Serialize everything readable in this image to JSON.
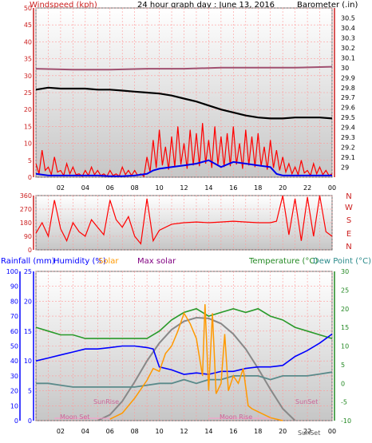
{
  "header": {
    "left_title": "Windspeed (kph)",
    "center_title": "24 hour graph day : June 13, 2016",
    "right_title": "Barometer (.in)"
  },
  "bottom_header": {
    "rainfall": "Rainfall (mm)",
    "humidity": "Humidity (%)",
    "solar": "Solar",
    "max_solar": "Max solar",
    "temperature": "Temperature (°C)",
    "dewpoint": "Dew Point (°C)"
  },
  "annotations": {
    "sunrise": "SunRise",
    "sunset": "SunSet",
    "moonset": "Moon Set",
    "moonrise": "Moon Rise"
  },
  "colors": {
    "wind": "#ff0000",
    "gust": "#0000ee",
    "barometer": "#000000",
    "barometer_ref": "#a05070",
    "direction": "#ff0000",
    "humidity": "#0000ff",
    "solar": "#ff9900",
    "max_solar": "#888888",
    "temperature": "#2a9a2a",
    "dewpoint": "#5a8a8a",
    "grid": "#ff9999",
    "left_axis_top": "#cc2020",
    "right_axis_bottom": "#228822",
    "rain_axis": "#0000ff",
    "humid_axis": "#0000ff"
  },
  "chart_data": [
    {
      "id": "wind",
      "type": "line",
      "title": "24 hour graph day : June 13, 2016",
      "xlabel": "",
      "ylabel": "Windspeed (kph)",
      "y2label": "Barometer (.in)",
      "x_ticks": [
        "02",
        "04",
        "06",
        "08",
        "10",
        "12",
        "14",
        "16",
        "18",
        "20",
        "22",
        "00"
      ],
      "y_ticks": [
        0,
        5,
        10,
        15,
        20,
        25,
        30,
        35,
        40,
        45,
        50
      ],
      "y2_ticks": [
        29,
        29.1,
        29.2,
        29.3,
        29.4,
        29.5,
        29.6,
        29.7,
        29.8,
        29.9,
        30,
        30.1,
        30.2,
        30.3,
        30.4,
        30.5
      ],
      "ylim": [
        0,
        50
      ],
      "y2lim": [
        28.9,
        30.6
      ],
      "grid": true,
      "series": [
        {
          "key": "barometer_ref",
          "axis": "right",
          "x": [
            0,
            3,
            6,
            9,
            12,
            15,
            18,
            21,
            24
          ],
          "values": [
            29.99,
            29.98,
            29.98,
            29.99,
            29.99,
            30.0,
            30.0,
            30.0,
            30.01
          ]
        },
        {
          "key": "barometer",
          "axis": "right",
          "x": [
            0,
            1,
            2,
            3,
            4,
            5,
            6,
            7,
            8,
            9,
            10,
            11,
            12,
            13,
            14,
            15,
            16,
            17,
            18,
            19,
            20,
            21,
            22,
            23,
            24
          ],
          "values": [
            29.78,
            29.8,
            29.79,
            29.79,
            29.79,
            29.78,
            29.78,
            29.77,
            29.76,
            29.75,
            29.74,
            29.72,
            29.69,
            29.66,
            29.62,
            29.58,
            29.55,
            29.52,
            29.5,
            29.49,
            29.49,
            29.5,
            29.5,
            29.5,
            29.49
          ]
        },
        {
          "key": "wind",
          "axis": "left",
          "x": [
            0,
            0.5,
            1,
            1.5,
            2,
            2.5,
            3,
            3.5,
            4,
            4.5,
            5,
            5.5,
            6,
            6.5,
            7,
            7.5,
            8,
            8.5,
            9,
            9.5,
            10,
            10.5,
            11,
            11.5,
            12,
            12.5,
            13,
            13.5,
            14,
            14.5,
            15,
            15.5,
            16,
            16.5,
            17,
            17.5,
            18,
            18.5,
            19,
            19.5,
            20,
            20.5,
            21,
            21.5,
            22,
            22.5,
            23,
            23.5,
            24
          ],
          "values": [
            4,
            8,
            3,
            6,
            2,
            4,
            3,
            1,
            2,
            3,
            2,
            1,
            2,
            1,
            3,
            2,
            2,
            1,
            6,
            11,
            14,
            9,
            12,
            15,
            10,
            14,
            13,
            16,
            11,
            15,
            12,
            13,
            15,
            10,
            14,
            12,
            13,
            9,
            11,
            8,
            6,
            4,
            3,
            5,
            2,
            4,
            3,
            2,
            1
          ]
        },
        {
          "key": "gust",
          "axis": "left",
          "x": [
            0,
            1,
            2,
            3,
            4,
            5,
            6,
            7,
            8,
            9,
            9.5,
            10,
            11,
            12,
            13,
            14,
            15,
            16,
            17,
            18,
            19,
            19.5,
            20,
            21,
            22,
            23,
            24
          ],
          "values": [
            1,
            0.5,
            0.5,
            0.5,
            0.5,
            0.5,
            0.3,
            0.3,
            0.5,
            1,
            2,
            2.5,
            3,
            3.5,
            4,
            5,
            3,
            4.5,
            4,
            3.5,
            3,
            1,
            0.5,
            0.5,
            0.5,
            0.5,
            0.5
          ]
        }
      ]
    },
    {
      "id": "direction",
      "type": "line",
      "xlabel": "",
      "ylabel": "",
      "y_ticks": [
        0,
        90,
        180,
        270,
        360
      ],
      "y_side_labels": [
        "N",
        "W",
        "S",
        "E",
        "N"
      ],
      "ylim": [
        0,
        360
      ],
      "series": [
        {
          "key": "direction",
          "x": [
            0,
            0.5,
            1,
            1.5,
            2,
            2.5,
            3,
            3.5,
            4,
            4.5,
            5,
            5.5,
            6,
            6.5,
            7,
            7.5,
            8,
            8.5,
            9,
            9.5,
            10,
            11,
            12,
            13,
            14,
            15,
            16,
            17,
            18,
            19,
            19.5,
            20,
            20.5,
            21,
            21.5,
            22,
            22.5,
            23,
            23.5,
            24
          ],
          "values": [
            110,
            180,
            90,
            330,
            140,
            60,
            180,
            120,
            90,
            200,
            150,
            100,
            330,
            200,
            150,
            220,
            90,
            40,
            340,
            60,
            130,
            170,
            180,
            185,
            180,
            185,
            190,
            185,
            180,
            180,
            190,
            360,
            100,
            340,
            60,
            350,
            90,
            360,
            120,
            90
          ]
        }
      ]
    },
    {
      "id": "bottom",
      "type": "line",
      "xlabel": "",
      "y_rain_ticks": [
        0,
        10,
        20,
        30,
        40,
        50,
        60,
        70,
        80,
        90,
        100
      ],
      "y_humid_ticks": [
        0,
        5,
        10,
        15,
        20,
        25
      ],
      "y_temp_ticks": [
        -10,
        -5,
        0,
        5,
        10,
        15,
        20,
        25,
        30
      ],
      "ylim_humidity": [
        0,
        100
      ],
      "ylim_temp": [
        -10,
        30
      ],
      "ylim_solar": [
        0,
        1000
      ],
      "grid": true,
      "series": [
        {
          "key": "temperature",
          "name": "Temperature (°C)",
          "x": [
            0,
            1,
            2,
            3,
            4,
            5,
            6,
            7,
            8,
            9,
            10,
            11,
            12,
            13,
            14,
            15,
            16,
            17,
            18,
            19,
            20,
            21,
            22,
            23,
            24
          ],
          "values": [
            15,
            14,
            13,
            13,
            12,
            12,
            12,
            12,
            12,
            12,
            14,
            17,
            19,
            20,
            18,
            19,
            20,
            19,
            20,
            18,
            17,
            15,
            14,
            13,
            12
          ]
        },
        {
          "key": "humidity",
          "name": "Humidity (%)",
          "x": [
            0,
            1,
            2,
            3,
            4,
            5,
            6,
            7,
            8,
            9,
            9.5,
            10,
            11,
            12,
            13,
            14,
            15,
            16,
            17,
            18,
            19,
            20,
            21,
            22,
            23,
            24
          ],
          "values": [
            40,
            42,
            44,
            46,
            48,
            48,
            49,
            50,
            50,
            49,
            48,
            36,
            34,
            31,
            32,
            31,
            33,
            33,
            35,
            36,
            36,
            37,
            43,
            47,
            52,
            58
          ]
        },
        {
          "key": "dewpoint",
          "name": "Dew Point (°C)",
          "x": [
            0,
            1,
            2,
            3,
            4,
            5,
            6,
            7,
            8,
            9,
            10,
            11,
            12,
            13,
            14,
            15,
            16,
            17,
            18,
            19,
            20,
            21,
            22,
            23,
            24
          ],
          "values": [
            0,
            0,
            -0.5,
            -1,
            -1,
            -1,
            -1,
            -1,
            -1,
            -0.5,
            0,
            0,
            1,
            0,
            1,
            1,
            2,
            2,
            2,
            1,
            2,
            2,
            2,
            2.5,
            3
          ]
        },
        {
          "key": "solar",
          "name": "Solar",
          "x": [
            6,
            7,
            8,
            9,
            9.5,
            10,
            10.5,
            11,
            11.5,
            12,
            12.5,
            13,
            13.5,
            13.7,
            14,
            14.3,
            14.6,
            15,
            15.3,
            15.6,
            16,
            16.4,
            16.8,
            17.2,
            17.5,
            18,
            19,
            20
          ],
          "values": [
            10,
            50,
            150,
            270,
            350,
            330,
            450,
            500,
            600,
            720,
            650,
            550,
            300,
            780,
            200,
            720,
            180,
            250,
            580,
            200,
            300,
            250,
            350,
            100,
            80,
            60,
            20,
            0
          ]
        },
        {
          "key": "max_solar",
          "name": "Max solar",
          "x": [
            5,
            6,
            7,
            8,
            9,
            10,
            11,
            12,
            13,
            14,
            15,
            16,
            17,
            18,
            19,
            20,
            21
          ],
          "values": [
            0,
            40,
            130,
            260,
            400,
            520,
            610,
            665,
            690,
            685,
            650,
            580,
            480,
            350,
            210,
            80,
            0
          ]
        }
      ]
    }
  ]
}
